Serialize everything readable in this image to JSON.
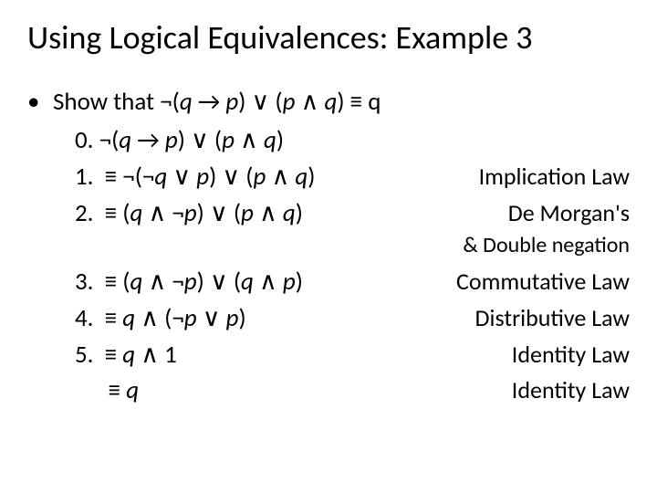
{
  "title": "Using Logical Equivalences: Example 3",
  "bullet": "•",
  "show": "Show that ¬(q → p) ∨ (p ∧ q) ≡ q",
  "steps": {
    "s0": {
      "num": "0.",
      "expr": "¬(q → p) ∨ (p ∧ q)",
      "law": ""
    },
    "s1": {
      "num": "1.",
      "expr": " ≡ ¬(¬q ∨ p) ∨ (p ∧ q)",
      "law": "Implication Law"
    },
    "s2": {
      "num": "2.",
      "expr": " ≡ (q ∧ ¬p) ∨ (p ∧ q)",
      "law": "De Morgan's",
      "law2": "& Double negation"
    },
    "s3": {
      "num": "3.",
      "expr": " ≡ (q ∧ ¬p) ∨ (q ∧ p)",
      "law": "Commutative Law"
    },
    "s4": {
      "num": "4.",
      "expr": " ≡ q ∧ (¬p ∨ p)",
      "law": "Distributive Law"
    },
    "s5": {
      "num": "5.",
      "expr": " ≡ q ∧ 1",
      "law": "Identity Law"
    },
    "s6": {
      "num": "",
      "expr": "  ≡ q",
      "law": "Identity Law"
    }
  }
}
